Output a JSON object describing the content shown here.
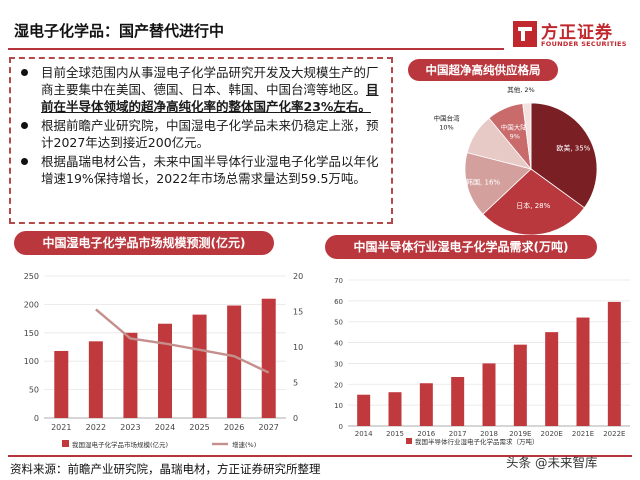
{
  "header": {
    "title": "湿电子化学品：国产替代进行中",
    "brand_cn": "方正证券",
    "brand_en": "FOUNDER SECURITIES"
  },
  "summary": {
    "bullets": [
      {
        "text": "目前全球范围内从事湿电子化学品研究开发及大规模生产的厂商主要集中在美国、德国、日本、韩国、中国台湾等地区。",
        "emphasis": "目前在半导体领域的超净高纯化率的整体国产化率23%左右。"
      },
      {
        "text": "根据前瞻产业研究院，中国湿电子化学品未来仍稳定上涨，预计2027年达到接近200亿元。",
        "emphasis": ""
      },
      {
        "text": "根据晶瑞电材公告，未来中国半导体行业湿电子化学品以年化增速19%保持增长，2022年市场总需求量达到59.5万吨。",
        "emphasis": ""
      }
    ]
  },
  "chart_data": [
    {
      "type": "pie",
      "title": "中国超净高纯供应格局",
      "slices": [
        {
          "label": "欧美",
          "value": 35,
          "color": "#7a1f24"
        },
        {
          "label": "日本",
          "value": 28,
          "color": "#b8383d"
        },
        {
          "label": "韩国",
          "value": 16,
          "color": "#d4a09d"
        },
        {
          "label": "中国台湾",
          "value": 10,
          "color": "#e7c9c6"
        },
        {
          "label": "中国大陆",
          "value": 9,
          "color": "#c96b6b"
        },
        {
          "label": "其他",
          "value": 2,
          "color": "#f2e1df"
        }
      ],
      "value_suffix": "%"
    },
    {
      "type": "bar",
      "title": "中国湿电子化学品市场规模预测(亿元)",
      "categories": [
        "2021",
        "2022",
        "2023",
        "2024",
        "2025",
        "2026",
        "2027"
      ],
      "series": [
        {
          "name": "我国湿电子化学品市场规模(亿元)",
          "values": [
            118,
            135,
            150,
            166,
            182,
            198,
            210
          ],
          "color": "#c0393d",
          "axis": "left"
        },
        {
          "name": "增速(%)",
          "type": "line",
          "values": [
            null,
            15.3,
            11.2,
            10.5,
            9.6,
            8.7,
            6.4
          ],
          "color": "#c48f8c",
          "axis": "right"
        }
      ],
      "ylim": [
        0,
        250
      ],
      "y_ticks": [
        0,
        50,
        100,
        150,
        200,
        250
      ],
      "y2lim": [
        0,
        20
      ],
      "y2_ticks": [
        0,
        5,
        10,
        15,
        20
      ],
      "grid": true,
      "legend": "bottom"
    },
    {
      "type": "bar",
      "title": "中国半导体行业湿电子化学品需求(万吨)",
      "categories": [
        "2014",
        "2015",
        "2016",
        "2017",
        "2018",
        "2019E",
        "2020E",
        "2021E",
        "2022E"
      ],
      "series": [
        {
          "name": "我国半导体行业湿电子化学品需求（万吨）",
          "values": [
            15,
            16.2,
            20.5,
            23.5,
            30,
            39,
            45,
            52,
            59.5
          ],
          "color": "#c0393d"
        }
      ],
      "ylim": [
        0,
        70
      ],
      "y_ticks": [
        0,
        10,
        20,
        30,
        40,
        50,
        60,
        70
      ],
      "grid": true,
      "legend": "bottom"
    }
  ],
  "footer": {
    "source": "资料来源：前瞻产业研究院，晶瑞电材，方正证券研究所整理",
    "watermark": "头条 @未来智库"
  }
}
